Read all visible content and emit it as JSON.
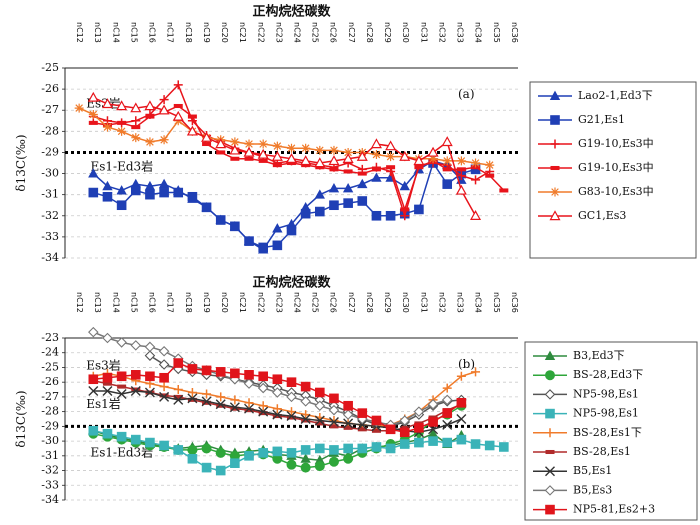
{
  "chart_data": [
    {
      "id": "a",
      "type": "line",
      "title": "正构烷烃碳数",
      "panel_label": "(a)",
      "ylabel": "δ13C(‰)",
      "ylim": [
        -34,
        -25
      ],
      "yticks": [
        -34,
        -33,
        -32,
        -31,
        -30,
        -29,
        -28,
        -27,
        -26,
        -25
      ],
      "categories": [
        "nC12",
        "nC13",
        "nC14",
        "nC15",
        "nC16",
        "nC17",
        "nC18",
        "nC19",
        "nC20",
        "nC21",
        "nC22",
        "nC23",
        "nC24",
        "nC25",
        "nC26",
        "nC27",
        "nC28",
        "nC29",
        "nC30",
        "nC31",
        "nC32",
        "nC33",
        "nC34",
        "nC35",
        "nC36"
      ],
      "grid": true,
      "legend_position": "right",
      "reference_line": -29,
      "annotations": [
        {
          "text": "Es3岩",
          "x": 13.5,
          "y": -26.7
        },
        {
          "text": "Es1-Ed3岩",
          "x": 13.8,
          "y": -29.7
        }
      ],
      "series": [
        {
          "name": "Lao2-1,Ed3下",
          "color": "#1f3fb5",
          "marker": "triangle",
          "x": [
            14,
            15,
            16,
            17,
            18,
            19,
            20,
            21,
            22,
            23,
            24,
            25,
            26,
            27,
            28,
            29,
            30,
            31,
            32,
            33,
            34,
            35,
            36,
            37,
            38,
            39,
            40
          ],
          "y": [
            -30.0,
            -30.6,
            -30.8,
            -30.5,
            -30.6,
            -30.5,
            -30.8,
            -31.2,
            -31.6,
            -32.2,
            -32.5,
            -33.2,
            -33.6,
            -32.6,
            -32.4,
            -31.6,
            -31.0,
            -30.7,
            -30.7,
            -30.5,
            -30.2,
            -30.2,
            -30.6,
            -29.8,
            -29.4,
            -29.6,
            -30.3
          ]
        },
        {
          "name": "G21,Es1",
          "color": "#1f3fb5",
          "marker": "square",
          "x": [
            14,
            15,
            16,
            17,
            18,
            19,
            20,
            21,
            22,
            23,
            24,
            25,
            26,
            27,
            28,
            29,
            30,
            31,
            32,
            33,
            34,
            35,
            36,
            37,
            38,
            39,
            40,
            41
          ],
          "y": [
            -30.9,
            -31.1,
            -31.5,
            -30.8,
            -31.0,
            -30.9,
            -30.9,
            -31.1,
            -31.6,
            -32.2,
            -32.5,
            -33.2,
            -33.5,
            -33.4,
            -32.7,
            -31.9,
            -31.8,
            -31.5,
            -31.4,
            -31.3,
            -32.0,
            -32.0,
            -31.9,
            -31.7,
            -29.5,
            -30.5,
            -30.0,
            -29.8
          ]
        },
        {
          "name": "G19-10,Es3中",
          "color": "#e8141b",
          "marker": "plus",
          "x": [
            14,
            15,
            16,
            17,
            18,
            19,
            20,
            21,
            22,
            23,
            24,
            25,
            26,
            27,
            28,
            29,
            30,
            31,
            32,
            33,
            34,
            35,
            36,
            37,
            38,
            39,
            40,
            41,
            42
          ],
          "y": [
            -27.3,
            -27.5,
            -27.6,
            -27.5,
            -27.2,
            -26.5,
            -25.8,
            -27.5,
            -28.2,
            -28.5,
            -28.8,
            -29.0,
            -29.2,
            -29.5,
            -29.4,
            -29.5,
            -29.6,
            -29.7,
            -29.5,
            -29.8,
            -29.7,
            -29.9,
            -32.0,
            -29.6,
            -29.5,
            -29.6,
            -30.1,
            -30.3,
            -29.9
          ]
        },
        {
          "name": "G19-10,Es3中",
          "color": "#e8141b",
          "marker": "dash",
          "x": [
            14,
            15,
            16,
            17,
            18,
            19,
            20,
            21,
            22,
            23,
            24,
            25,
            26,
            27,
            28,
            29,
            30,
            31,
            32,
            33,
            34,
            35,
            36,
            37,
            38,
            39,
            40,
            41,
            42,
            43
          ],
          "y": [
            -27.6,
            -27.7,
            -27.6,
            -27.8,
            -27.3,
            -27.1,
            -26.8,
            -27.3,
            -28.6,
            -29.0,
            -29.3,
            -29.3,
            -29.4,
            -29.6,
            -29.5,
            -29.6,
            -29.7,
            -29.8,
            -29.9,
            -30.0,
            -29.8,
            -29.7,
            -31.7,
            -29.7,
            -29.4,
            -29.8,
            -29.8,
            -29.7,
            -30.1,
            -30.8
          ]
        },
        {
          "name": "G83-10,Es3中",
          "color": "#f07b2b",
          "marker": "star",
          "x": [
            13,
            14,
            15,
            16,
            17,
            18,
            19,
            20,
            21,
            22,
            23,
            24,
            25,
            26,
            27,
            28,
            29,
            30,
            31,
            32,
            33,
            34,
            35,
            36,
            37,
            38,
            39,
            40,
            41,
            42
          ],
          "y": [
            -26.9,
            -27.2,
            -27.8,
            -28.0,
            -28.3,
            -28.5,
            -28.4,
            -27.5,
            -28.0,
            -28.3,
            -28.4,
            -28.5,
            -28.6,
            -28.6,
            -28.7,
            -28.8,
            -28.8,
            -28.9,
            -28.9,
            -29.0,
            -29.0,
            -29.1,
            -29.2,
            -29.2,
            -29.3,
            -29.3,
            -29.4,
            -29.4,
            -29.5,
            -29.6
          ]
        },
        {
          "name": "GC1,Es3",
          "color": "#e8141b",
          "marker": "triangle-open",
          "x": [
            14,
            15,
            16,
            17,
            18,
            19,
            20,
            21,
            22,
            23,
            24,
            25,
            26,
            27,
            28,
            29,
            30,
            31,
            32,
            33,
            34,
            35,
            36,
            37,
            38,
            39,
            40,
            41
          ],
          "y": [
            -26.4,
            -26.7,
            -26.8,
            -26.9,
            -26.8,
            -27.0,
            -27.3,
            -28.0,
            -28.3,
            -28.6,
            -28.9,
            -29.0,
            -29.1,
            -29.2,
            -29.3,
            -29.4,
            -29.5,
            -29.4,
            -29.3,
            -29.2,
            -28.6,
            -28.7,
            -29.2,
            -29.4,
            -29.0,
            -28.5,
            -30.8,
            -32.0
          ]
        }
      ]
    },
    {
      "id": "b",
      "type": "line",
      "title": "正构烷烃碳数",
      "panel_label": "(b)",
      "ylabel": "δ13C(‰)",
      "ylim": [
        -34,
        -23
      ],
      "yticks": [
        -34,
        -33,
        -32,
        -31,
        -30,
        -29,
        -28,
        -27,
        -26,
        -25,
        -24,
        -23
      ],
      "categories": [
        "nC12",
        "nC13",
        "nC14",
        "nC15",
        "nC16",
        "nC17",
        "nC18",
        "nC19",
        "nC20",
        "nC21",
        "nC22",
        "nC23",
        "nC24",
        "nC25",
        "nC26",
        "nC27",
        "nC28",
        "nC29",
        "nC30",
        "nC31",
        "nC32",
        "nC33",
        "nC34",
        "nC35",
        "nC36"
      ],
      "grid": true,
      "legend_position": "right",
      "reference_line": -29,
      "annotations": [
        {
          "text": "Es3岩",
          "x": 13.5,
          "y": -24.9
        },
        {
          "text": "Es1岩",
          "x": 13.5,
          "y": -27.5
        },
        {
          "text": "Es1-Ed3岩",
          "x": 13.8,
          "y": -30.8
        }
      ],
      "series": [
        {
          "name": "B3,Ed3下",
          "color": "#2e8b3e",
          "marker": "triangle",
          "x": [
            14,
            15,
            16,
            17,
            18,
            19,
            20,
            21,
            22,
            23,
            24,
            25,
            26,
            27,
            28,
            29,
            30,
            31,
            32,
            33,
            34,
            35,
            36,
            37,
            38,
            39,
            40
          ],
          "y": [
            -29.3,
            -29.6,
            -29.8,
            -30.0,
            -30.2,
            -30.4,
            -30.5,
            -30.4,
            -30.3,
            -30.6,
            -30.8,
            -30.7,
            -30.6,
            -30.9,
            -31.0,
            -31.2,
            -31.3,
            -30.8,
            -31.0,
            -30.5,
            -30.4,
            -30.3,
            -30.1,
            -29.9,
            -29.5,
            -30.2,
            -29.6
          ]
        },
        {
          "name": "BS-28,Ed3下",
          "color": "#2ea63a",
          "marker": "circle",
          "x": [
            14,
            15,
            16,
            17,
            18,
            19,
            20,
            21,
            22,
            23,
            24,
            25,
            26,
            27,
            28,
            29,
            30,
            31,
            32,
            33,
            34,
            35,
            36,
            37,
            38,
            39,
            40
          ],
          "y": [
            -29.5,
            -29.7,
            -29.9,
            -30.1,
            -30.3,
            -30.4,
            -30.6,
            -30.6,
            -30.5,
            -30.8,
            -31.0,
            -30.9,
            -30.9,
            -31.2,
            -31.6,
            -31.8,
            -31.7,
            -31.4,
            -31.2,
            -30.8,
            -30.5,
            -30.2,
            -29.9,
            -29.4,
            -28.6,
            -28.2,
            -27.6
          ]
        },
        {
          "name": "NP5-98,Es1",
          "color": "#555555",
          "marker": "diamond-open",
          "x": [
            18,
            19,
            20,
            21,
            22,
            23,
            24,
            25,
            26,
            27,
            28,
            29,
            30,
            31,
            32,
            33,
            34,
            35,
            36,
            37,
            38,
            39,
            40
          ],
          "y": [
            -24.2,
            -24.8,
            -25.1,
            -25.3,
            -25.5,
            -25.6,
            -25.8,
            -26.0,
            -26.2,
            -26.4,
            -26.7,
            -26.9,
            -27.2,
            -27.6,
            -28.0,
            -28.5,
            -28.9,
            -29.0,
            -28.7,
            -28.2,
            -27.6,
            -27.3,
            -27.2
          ]
        },
        {
          "name": "NP5-98,Es1",
          "color": "#3ab3b8",
          "marker": "square",
          "x": [
            14,
            15,
            16,
            17,
            18,
            19,
            20,
            21,
            22,
            23,
            24,
            25,
            26,
            27,
            28,
            29,
            30,
            31,
            32,
            33,
            34,
            35,
            36,
            37,
            38,
            39,
            40,
            41,
            42,
            43
          ],
          "y": [
            -29.3,
            -29.5,
            -29.7,
            -29.9,
            -30.1,
            -30.3,
            -30.6,
            -31.2,
            -31.8,
            -32.0,
            -31.5,
            -31.0,
            -30.8,
            -30.7,
            -30.8,
            -30.6,
            -30.5,
            -30.6,
            -30.5,
            -30.5,
            -30.4,
            -30.5,
            -30.2,
            -30.1,
            -30.0,
            -30.1,
            -29.9,
            -30.2,
            -30.3,
            -30.4
          ]
        },
        {
          "name": "BS-28,Es1下",
          "color": "#f07b2b",
          "marker": "plus",
          "x": [
            14,
            15,
            16,
            17,
            18,
            19,
            20,
            21,
            22,
            23,
            24,
            25,
            26,
            27,
            28,
            29,
            30,
            31,
            32,
            33,
            34,
            35,
            36,
            37,
            38,
            39,
            40,
            41
          ],
          "y": [
            -25.6,
            -25.4,
            -25.6,
            -25.9,
            -26.1,
            -26.3,
            -26.5,
            -26.7,
            -26.8,
            -27.0,
            -27.2,
            -27.4,
            -27.6,
            -27.8,
            -28.0,
            -28.2,
            -28.4,
            -28.6,
            -28.8,
            -28.9,
            -29.0,
            -28.9,
            -28.5,
            -28.0,
            -27.2,
            -26.4,
            -25.6,
            -25.3
          ]
        },
        {
          "name": "BS-28,Es1",
          "color": "#b02a2a",
          "marker": "dash",
          "x": [
            14,
            15,
            16,
            17,
            18,
            19,
            20,
            21,
            22,
            23,
            24,
            25,
            26,
            27,
            28,
            29,
            30,
            31,
            32,
            33,
            34,
            35,
            36,
            37,
            38,
            39,
            40
          ],
          "y": [
            -25.9,
            -26.1,
            -26.3,
            -26.5,
            -26.7,
            -26.9,
            -27.0,
            -27.2,
            -27.4,
            -27.6,
            -27.8,
            -27.9,
            -28.1,
            -28.3,
            -28.4,
            -28.6,
            -28.8,
            -29.0,
            -29.1,
            -29.2,
            -29.3,
            -29.3,
            -29.1,
            -28.8,
            -28.4,
            -27.9,
            -27.5
          ]
        },
        {
          "name": "B5,Es1",
          "color": "#333333",
          "marker": "x",
          "x": [
            14,
            15,
            16,
            17,
            18,
            19,
            20,
            21,
            22,
            23,
            24,
            25,
            26,
            27,
            28,
            29,
            30,
            31,
            32,
            33,
            34,
            35,
            36,
            37,
            38,
            39,
            40
          ],
          "y": [
            -26.6,
            -26.6,
            -26.8,
            -26.6,
            -26.7,
            -27.0,
            -27.2,
            -27.1,
            -27.3,
            -27.5,
            -27.7,
            -27.8,
            -28.0,
            -28.2,
            -28.3,
            -28.5,
            -28.6,
            -28.7,
            -28.8,
            -28.9,
            -29.0,
            -29.1,
            -29.3,
            -29.4,
            -29.2,
            -28.9,
            -28.5
          ]
        },
        {
          "name": "B5,Es3",
          "color": "#777777",
          "marker": "diamond-open",
          "x": [
            14,
            15,
            16,
            17,
            18,
            19,
            20,
            21,
            22,
            23,
            24,
            25,
            26,
            27,
            28,
            29,
            30,
            31,
            32,
            33,
            34,
            35,
            36,
            37,
            38,
            39
          ],
          "y": [
            -22.6,
            -23.0,
            -23.3,
            -23.5,
            -23.6,
            -23.9,
            -24.4,
            -24.9,
            -25.2,
            -25.5,
            -25.8,
            -26.1,
            -26.4,
            -26.7,
            -27.0,
            -27.3,
            -27.6,
            -27.9,
            -28.2,
            -28.5,
            -28.7,
            -28.9,
            -28.6,
            -28.0,
            -27.5,
            -27.2
          ]
        },
        {
          "name": "NP5-81,Es2+3",
          "color": "#e0141b",
          "marker": "square",
          "x": [
            14,
            15,
            16,
            17,
            18,
            19,
            20,
            21,
            22,
            23,
            24,
            25,
            26,
            27,
            28,
            29,
            30,
            31,
            32,
            33,
            34,
            35,
            36,
            37,
            38,
            39,
            40
          ],
          "y": [
            -25.8,
            -25.7,
            -25.6,
            -25.5,
            -25.6,
            -25.7,
            -24.7,
            -25.1,
            -25.2,
            -25.3,
            -25.4,
            -25.5,
            -25.6,
            -25.8,
            -26.0,
            -26.3,
            -26.7,
            -27.1,
            -27.6,
            -28.1,
            -28.6,
            -29.2,
            -29.4,
            -29.1,
            -28.7,
            -28.1,
            -27.4
          ]
        }
      ]
    }
  ]
}
